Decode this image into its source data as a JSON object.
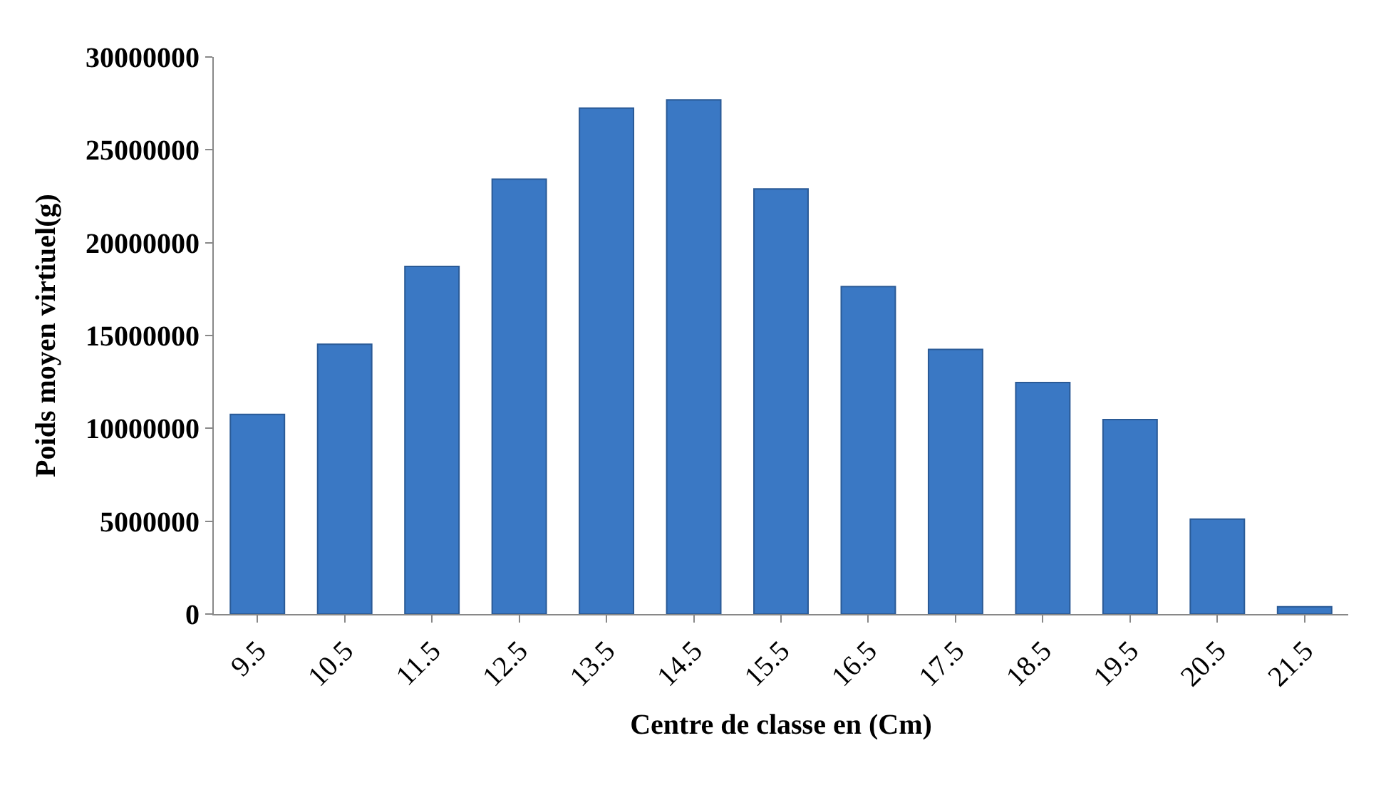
{
  "chart_data": {
    "type": "bar",
    "xlabel": "Centre de classe en (Cm)",
    "ylabel": "Poids moyen virtiuel(g)",
    "categories": [
      "9.5",
      "10.5",
      "11.5",
      "12.5",
      "13.5",
      "14.5",
      "15.5",
      "16.5",
      "17.5",
      "18.5",
      "19.5",
      "20.5",
      "21.5"
    ],
    "values": [
      10750000,
      14530000,
      18720000,
      23420000,
      27250000,
      27690000,
      22890000,
      17640000,
      14250000,
      12470000,
      10470000,
      5110000,
      390000
    ],
    "color": "#3a78c4",
    "ylim": [
      0,
      30000000
    ],
    "yticks": [
      0,
      5000000,
      10000000,
      15000000,
      20000000,
      25000000,
      30000000
    ],
    "legend": false
  }
}
